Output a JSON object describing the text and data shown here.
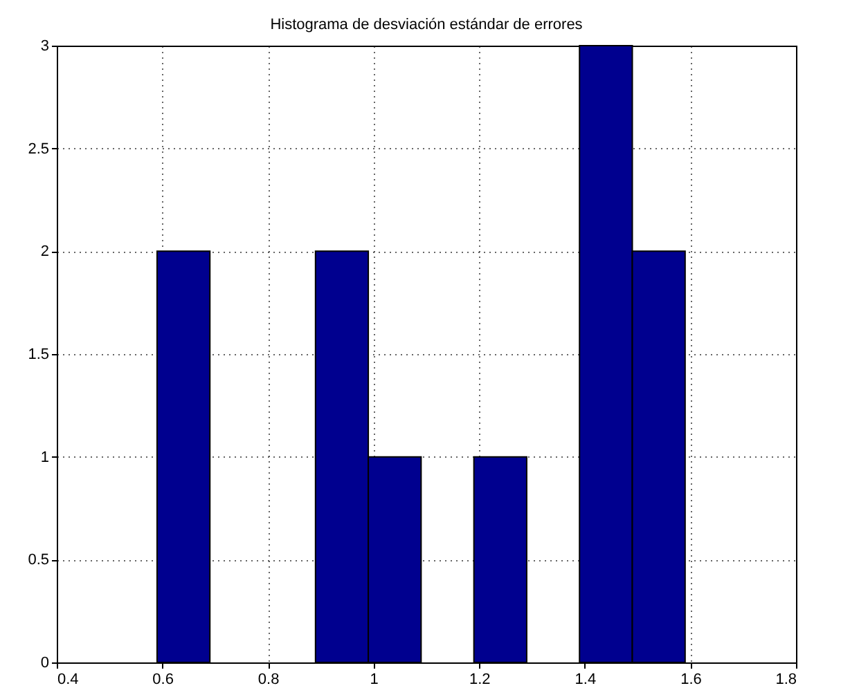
{
  "chart_data": {
    "type": "histogram",
    "title": "Histograma de desviación estándar de errores",
    "bins": [
      0.59,
      0.69,
      0.79,
      0.89,
      0.99,
      1.09,
      1.19,
      1.29,
      1.39,
      1.49,
      1.59
    ],
    "values": [
      2,
      0,
      0,
      2,
      1,
      0,
      1,
      0,
      3,
      2
    ],
    "color": "#00008f",
    "xlim": [
      0.4,
      1.8
    ],
    "xticks": [
      0.4,
      0.6,
      0.8,
      1,
      1.2,
      1.4,
      1.6,
      1.8
    ],
    "ylim": [
      0,
      3
    ],
    "yticks": [
      0,
      0.5,
      1,
      1.5,
      2,
      2.5,
      3
    ],
    "grid": true
  }
}
